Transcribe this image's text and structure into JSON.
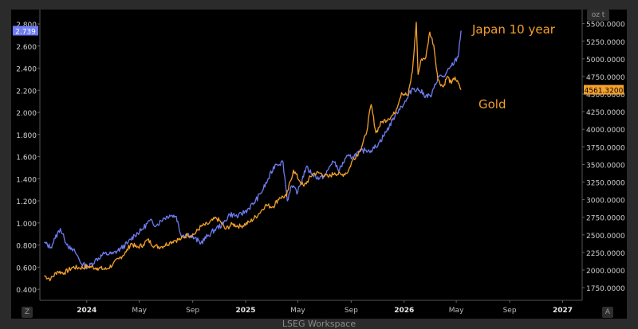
{
  "footer": "LSEG Workspace",
  "unit_button": "oz t",
  "zoom_left": "Z",
  "zoom_right": "A",
  "chart_data": {
    "type": "line",
    "x_tick_labels": [
      "2024",
      "May",
      "Sep",
      "2025",
      "May",
      "Sep",
      "2026",
      "May",
      "Sep",
      "2027"
    ],
    "y_left": {
      "ticks": [
        "0.400",
        "0.600",
        "0.800",
        "1.000",
        "1.200",
        "1.400",
        "1.600",
        "1.800",
        "2.000",
        "2.200",
        "2.400",
        "2.600",
        "2.800"
      ],
      "range": [
        0.4,
        2.8
      ]
    },
    "y_right": {
      "ticks": [
        "1750.0000",
        "2000.0000",
        "2250.0000",
        "2500.0000",
        "2750.0000",
        "3000.0000",
        "3250.0000",
        "3500.0000",
        "3750.0000",
        "4000.0000",
        "4250.0000",
        "4500.0000",
        "4750.0000",
        "5000.0000",
        "5250.0000",
        "5500.0000"
      ],
      "range": [
        1750,
        5500
      ]
    },
    "annotations": [
      "Japan 10 year",
      "Gold"
    ],
    "colors": {
      "japan": "#6f7cf2",
      "gold": "#f4a02c"
    },
    "series": [
      {
        "name": "Japan 10 year",
        "axis": "left",
        "last_label": "2.739",
        "points": [
          [
            "2023-09-25",
            0.82
          ],
          [
            "2023-10-10",
            0.78
          ],
          [
            "2023-10-20",
            0.86
          ],
          [
            "2023-11-01",
            0.95
          ],
          [
            "2023-11-10",
            0.86
          ],
          [
            "2023-11-25",
            0.76
          ],
          [
            "2023-12-05",
            0.74
          ],
          [
            "2023-12-20",
            0.63
          ],
          [
            "2024-01-05",
            0.6
          ],
          [
            "2024-01-20",
            0.66
          ],
          [
            "2024-02-10",
            0.72
          ],
          [
            "2024-03-01",
            0.72
          ],
          [
            "2024-03-20",
            0.77
          ],
          [
            "2024-04-05",
            0.82
          ],
          [
            "2024-04-20",
            0.89
          ],
          [
            "2024-05-05",
            0.93
          ],
          [
            "2024-05-25",
            1.02
          ],
          [
            "2024-06-10",
            0.98
          ],
          [
            "2024-06-25",
            1.04
          ],
          [
            "2024-07-10",
            1.07
          ],
          [
            "2024-07-25",
            1.06
          ],
          [
            "2024-08-05",
            0.89
          ],
          [
            "2024-08-20",
            0.9
          ],
          [
            "2024-09-05",
            0.86
          ],
          [
            "2024-09-20",
            0.82
          ],
          [
            "2024-10-05",
            0.88
          ],
          [
            "2024-10-25",
            0.95
          ],
          [
            "2024-11-10",
            0.99
          ],
          [
            "2024-11-25",
            1.08
          ],
          [
            "2024-12-15",
            1.06
          ],
          [
            "2025-01-05",
            1.12
          ],
          [
            "2025-01-20",
            1.18
          ],
          [
            "2025-02-05",
            1.27
          ],
          [
            "2025-02-20",
            1.38
          ],
          [
            "2025-03-10",
            1.53
          ],
          [
            "2025-03-28",
            1.55
          ],
          [
            "2025-04-07",
            1.2
          ],
          [
            "2025-04-15",
            1.33
          ],
          [
            "2025-05-01",
            1.28
          ],
          [
            "2025-05-20",
            1.5
          ],
          [
            "2025-06-05",
            1.44
          ],
          [
            "2025-06-20",
            1.4
          ],
          [
            "2025-07-05",
            1.44
          ],
          [
            "2025-07-20",
            1.56
          ],
          [
            "2025-08-05",
            1.48
          ],
          [
            "2025-08-20",
            1.59
          ],
          [
            "2025-09-05",
            1.6
          ],
          [
            "2025-09-20",
            1.64
          ],
          [
            "2025-10-05",
            1.66
          ],
          [
            "2025-10-20",
            1.66
          ],
          [
            "2025-11-05",
            1.73
          ],
          [
            "2025-11-20",
            1.82
          ],
          [
            "2025-12-05",
            1.93
          ],
          [
            "2025-12-20",
            2.03
          ],
          [
            "2026-01-05",
            2.1
          ],
          [
            "2026-01-20",
            2.22
          ],
          [
            "2026-02-05",
            2.2
          ],
          [
            "2026-02-20",
            2.15
          ],
          [
            "2026-03-05",
            2.15
          ],
          [
            "2026-03-20",
            2.32
          ],
          [
            "2026-04-05",
            2.33
          ],
          [
            "2026-04-20",
            2.42
          ],
          [
            "2026-05-05",
            2.5
          ],
          [
            "2026-05-12",
            2.739
          ]
        ]
      },
      {
        "name": "Gold",
        "axis": "right",
        "last_label": "4561.3200",
        "points": [
          [
            "2023-09-25",
            1920
          ],
          [
            "2023-10-10",
            1870
          ],
          [
            "2023-10-25",
            1980
          ],
          [
            "2023-11-10",
            1960
          ],
          [
            "2023-11-30",
            2040
          ],
          [
            "2023-12-15",
            2030
          ],
          [
            "2024-01-05",
            2050
          ],
          [
            "2024-01-25",
            2030
          ],
          [
            "2024-02-15",
            2010
          ],
          [
            "2024-03-01",
            2080
          ],
          [
            "2024-03-15",
            2160
          ],
          [
            "2024-04-01",
            2260
          ],
          [
            "2024-04-12",
            2380
          ],
          [
            "2024-04-25",
            2320
          ],
          [
            "2024-05-10",
            2360
          ],
          [
            "2024-05-20",
            2430
          ],
          [
            "2024-06-05",
            2340
          ],
          [
            "2024-06-20",
            2330
          ],
          [
            "2024-07-10",
            2390
          ],
          [
            "2024-07-20",
            2420
          ],
          [
            "2024-08-05",
            2440
          ],
          [
            "2024-08-20",
            2500
          ],
          [
            "2024-09-05",
            2510
          ],
          [
            "2024-09-20",
            2620
          ],
          [
            "2024-10-05",
            2650
          ],
          [
            "2024-10-25",
            2740
          ],
          [
            "2024-11-05",
            2680
          ],
          [
            "2024-11-15",
            2580
          ],
          [
            "2024-12-01",
            2650
          ],
          [
            "2024-12-20",
            2620
          ],
          [
            "2025-01-10",
            2680
          ],
          [
            "2025-01-30",
            2790
          ],
          [
            "2025-02-15",
            2920
          ],
          [
            "2025-03-05",
            2900
          ],
          [
            "2025-03-20",
            3030
          ],
          [
            "2025-04-05",
            3050
          ],
          [
            "2025-04-21",
            3420
          ],
          [
            "2025-05-05",
            3270
          ],
          [
            "2025-05-15",
            3190
          ],
          [
            "2025-06-05",
            3370
          ],
          [
            "2025-06-20",
            3380
          ],
          [
            "2025-07-10",
            3320
          ],
          [
            "2025-07-25",
            3380
          ],
          [
            "2025-08-10",
            3350
          ],
          [
            "2025-08-25",
            3400
          ],
          [
            "2025-09-05",
            3570
          ],
          [
            "2025-09-20",
            3680
          ],
          [
            "2025-10-05",
            3920
          ],
          [
            "2025-10-17",
            4350
          ],
          [
            "2025-10-28",
            3950
          ],
          [
            "2025-11-10",
            4100
          ],
          [
            "2025-11-25",
            4150
          ],
          [
            "2025-12-10",
            4220
          ],
          [
            "2025-12-26",
            4520
          ],
          [
            "2026-01-10",
            4480
          ],
          [
            "2026-01-20",
            4820
          ],
          [
            "2026-01-29",
            5520
          ],
          [
            "2026-02-02",
            4780
          ],
          [
            "2026-02-10",
            5000
          ],
          [
            "2026-02-20",
            5020
          ],
          [
            "2026-03-01",
            5380
          ],
          [
            "2026-03-10",
            5200
          ],
          [
            "2026-03-20",
            4700
          ],
          [
            "2026-04-01",
            4600
          ],
          [
            "2026-04-10",
            4750
          ],
          [
            "2026-04-20",
            4650
          ],
          [
            "2026-04-28",
            4740
          ],
          [
            "2026-05-12",
            4561.32
          ]
        ]
      }
    ]
  }
}
